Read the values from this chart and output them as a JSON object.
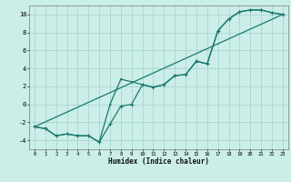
{
  "xlabel": "Humidex (Indice chaleur)",
  "background_color": "#cceee8",
  "grid_color": "#aad4cf",
  "line_color": "#1a7a6e",
  "xlim": [
    -0.5,
    23.5
  ],
  "ylim": [
    -5,
    11
  ],
  "xticks": [
    0,
    1,
    2,
    3,
    4,
    5,
    6,
    7,
    8,
    9,
    10,
    11,
    12,
    13,
    14,
    15,
    16,
    17,
    18,
    19,
    20,
    21,
    22,
    23
  ],
  "yticks": [
    -4,
    -2,
    0,
    2,
    4,
    6,
    8,
    10
  ],
  "line1_x": [
    0,
    1,
    2,
    3,
    4,
    5,
    6,
    7,
    8,
    9,
    10,
    11,
    12,
    13,
    14,
    15,
    16,
    17,
    18,
    19,
    20,
    21,
    22,
    23
  ],
  "line1_y": [
    -2.5,
    -2.7,
    -3.5,
    -3.3,
    -3.5,
    -3.5,
    -4.2,
    -2.2,
    -0.2,
    0.0,
    2.2,
    1.9,
    2.2,
    3.2,
    3.3,
    4.8,
    4.5,
    8.2,
    9.5,
    10.3,
    10.5,
    10.5,
    10.2,
    10.0
  ],
  "line2_x": [
    0,
    1,
    2,
    3,
    4,
    5,
    6,
    7,
    8,
    9,
    10,
    11,
    12,
    13,
    14,
    15,
    16,
    17,
    18,
    19,
    20,
    21,
    22,
    23
  ],
  "line2_y": [
    -2.5,
    -2.7,
    -3.5,
    -3.3,
    -3.5,
    -3.5,
    -4.2,
    0.0,
    2.8,
    2.5,
    2.2,
    1.9,
    2.2,
    3.2,
    3.3,
    4.8,
    4.5,
    8.2,
    9.5,
    10.3,
    10.5,
    10.5,
    10.2,
    10.0
  ],
  "line3_x": [
    0,
    23
  ],
  "line3_y": [
    -2.5,
    10.0
  ]
}
